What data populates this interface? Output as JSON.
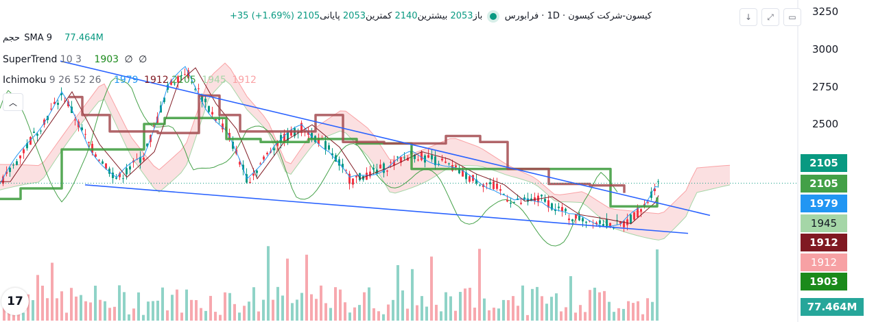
{
  "header": {
    "title": "کیسون-شرکت کیسون",
    "interval": "1D",
    "exchange": "فرابورس",
    "open_label": "باز",
    "open_value": "2053",
    "high_label": "بیشترین",
    "high_value": "2140",
    "low_label": "کمترین",
    "low_value": "2053",
    "close_label": "پایانی",
    "close_value": "2105",
    "change": "+35 (+1.69%)"
  },
  "indicators": {
    "volume_label": "حجم",
    "volume_params": "SMA 9",
    "volume_value": "77.464M",
    "supertrend_label": "SuperTrend",
    "supertrend_params": "10 3",
    "supertrend_value": "1903",
    "supertrend_empty1": "∅",
    "supertrend_empty2": "∅",
    "ichimoku_label": "Ichimoku",
    "ichimoku_params": "9 26 52 26",
    "ichimoku_values": [
      "1979",
      "1912",
      "2105",
      "1945",
      "1912"
    ]
  },
  "colors": {
    "up": "#089981",
    "down": "#f23645",
    "conversion": "#2962ff",
    "base": "#801922",
    "lagging": "#43a047",
    "lead_a": "#a5d6a7",
    "lead_b": "#faa1a4",
    "supertrend": "#388e3c",
    "trendline": "#2962ff"
  },
  "axis": {
    "ticks": [
      "3250",
      "3000",
      "2750",
      "2500"
    ]
  },
  "badges": [
    {
      "text": "2105",
      "color": "#089981"
    },
    {
      "text": "2105",
      "color": "#43a047"
    },
    {
      "text": "1979",
      "color": "#2196f3"
    },
    {
      "text": "1945",
      "color": "#a5d6a7"
    },
    {
      "text": "1912",
      "color": "#801922"
    },
    {
      "text": "1912",
      "color": "#f7a1a4"
    },
    {
      "text": "1903",
      "color": "#1b8a1b"
    },
    {
      "text": "77.464M",
      "color": "#26a69a"
    }
  ],
  "toolbar": {
    "down_icon": "↓",
    "expand_icon": "⤢",
    "collapse_icon": "︿"
  },
  "logo_text": "17",
  "chart_data": {
    "type": "candlestick",
    "ylim": [
      1700,
      3300
    ],
    "y_ticks": [
      3250,
      3000,
      2750,
      2500
    ],
    "last_close": 2105,
    "trendlines": [
      {
        "from": {
          "bar": 88,
          "price": 2920
        },
        "to": {
          "bar": 1035,
          "price": 1890
        }
      },
      {
        "from": {
          "bar": 124,
          "price": 2094
        },
        "to": {
          "bar": 1003,
          "price": 1770
        }
      }
    ]
  }
}
